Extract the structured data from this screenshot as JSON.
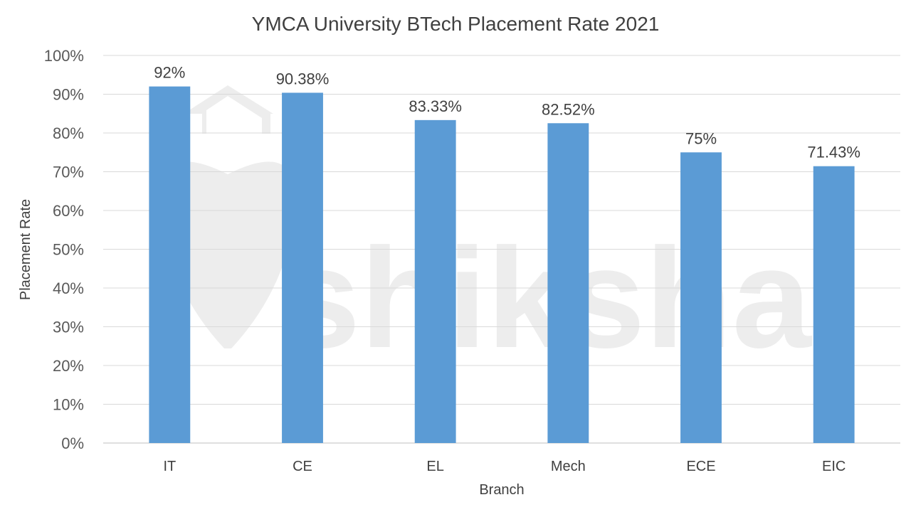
{
  "chart_data": {
    "type": "bar",
    "title": "YMCA University BTech Placement Rate 2021",
    "xlabel": "Branch",
    "ylabel": "Placement Rate",
    "categories": [
      "IT",
      "CE",
      "EL",
      "Mech",
      "ECE",
      "EIC"
    ],
    "values": [
      92,
      90.38,
      83.33,
      82.52,
      75,
      71.43
    ],
    "data_labels": [
      "92%",
      "90.38%",
      "83.33%",
      "82.52%",
      "75%",
      "71.43%"
    ],
    "ylim": [
      0,
      100
    ],
    "yticks": [
      0,
      10,
      20,
      30,
      40,
      50,
      60,
      70,
      80,
      90,
      100
    ],
    "ytick_labels": [
      "0%",
      "10%",
      "20%",
      "30%",
      "40%",
      "50%",
      "60%",
      "70%",
      "80%",
      "90%",
      "100%"
    ],
    "grid": true,
    "legend": "none",
    "bar_color": "#5b9bd5",
    "watermark": "shiksha"
  }
}
